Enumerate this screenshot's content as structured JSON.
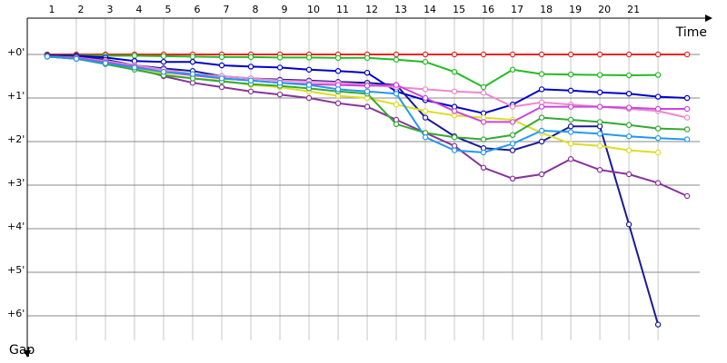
{
  "chart_data": {
    "type": "line",
    "x_label": "Time",
    "y_label": "Gap",
    "x": [
      0,
      1,
      2,
      3,
      4,
      5,
      6,
      7,
      8,
      9,
      10,
      11,
      12,
      13,
      14,
      15,
      16,
      17,
      18,
      19,
      20,
      21,
      22
    ],
    "xlim": [
      -0.6875,
      22.59
    ],
    "xticks": [
      1,
      2,
      3,
      4,
      5,
      6,
      7,
      8,
      9,
      10,
      11,
      12,
      13,
      14,
      15,
      16,
      17,
      18,
      19,
      20,
      21
    ],
    "ylim": [
      -0.833,
      6.77
    ],
    "yticks": [
      {
        "value": 0,
        "label": "+0'"
      },
      {
        "value": 1,
        "label": "+1'"
      },
      {
        "value": 2,
        "label": "+2'"
      },
      {
        "value": 3,
        "label": "+3'"
      },
      {
        "value": 4,
        "label": "+4'"
      },
      {
        "value": 5,
        "label": "+5'"
      },
      {
        "value": 6,
        "label": "+6'"
      }
    ],
    "grid": true,
    "series": [
      {
        "color": "#ee2222",
        "values": [
          0,
          0,
          0,
          0,
          0,
          0,
          0,
          0,
          0,
          0,
          0,
          0,
          0,
          0,
          0,
          0,
          0,
          0,
          0,
          0,
          0,
          0,
          0
        ]
      },
      {
        "color": "#22bb22",
        "values": [
          0.02,
          0.02,
          0.03,
          0.03,
          0.04,
          0.05,
          0.06,
          0.06,
          0.07,
          0.07,
          0.08,
          0.08,
          0.12,
          0.17,
          0.4,
          0.75,
          0.35,
          0.45,
          0.46,
          0.47,
          0.48,
          0.47,
          null
        ]
      },
      {
        "color": "#0000cc",
        "values": [
          0.02,
          0.03,
          0.07,
          0.15,
          0.17,
          0.17,
          0.25,
          0.28,
          0.3,
          0.35,
          0.38,
          0.42,
          0.85,
          1.05,
          1.2,
          1.35,
          1.15,
          0.8,
          0.83,
          0.87,
          0.9,
          0.97,
          1.0
        ]
      },
      {
        "color": "#1a1a99",
        "values": [
          0.02,
          0.05,
          0.12,
          0.25,
          0.32,
          0.38,
          0.5,
          0.55,
          0.58,
          0.6,
          0.63,
          0.65,
          0.7,
          1.45,
          1.88,
          2.15,
          2.2,
          2.0,
          1.65,
          1.65,
          3.9,
          6.2,
          null
        ]
      },
      {
        "color": "#883399",
        "values": [
          0.05,
          0.1,
          0.2,
          0.3,
          0.5,
          0.65,
          0.75,
          0.85,
          0.92,
          1.0,
          1.12,
          1.2,
          1.5,
          1.8,
          2.1,
          2.6,
          2.85,
          2.75,
          2.4,
          2.65,
          2.75,
          2.95,
          3.25
        ]
      },
      {
        "color": "#dddd22",
        "values": [
          0.05,
          0.08,
          0.2,
          0.3,
          0.45,
          0.55,
          0.6,
          0.7,
          0.75,
          0.85,
          0.95,
          1.0,
          1.15,
          1.3,
          1.4,
          1.45,
          1.5,
          1.8,
          2.05,
          2.1,
          2.2,
          2.25,
          null
        ]
      },
      {
        "color": "#ee88cc",
        "values": [
          0.05,
          0.07,
          0.15,
          0.25,
          0.35,
          0.45,
          0.5,
          0.55,
          0.6,
          0.62,
          0.65,
          0.7,
          0.75,
          0.8,
          0.85,
          0.88,
          1.2,
          1.1,
          1.15,
          1.2,
          1.25,
          1.3,
          1.45
        ]
      },
      {
        "color": "#cc44dd",
        "values": [
          0.05,
          0.08,
          0.18,
          0.28,
          0.4,
          0.48,
          0.55,
          0.6,
          0.65,
          0.68,
          0.7,
          0.72,
          0.7,
          1.0,
          1.3,
          1.55,
          1.55,
          1.2,
          1.2,
          1.2,
          1.22,
          1.25,
          1.25
        ]
      },
      {
        "color": "#33aa33",
        "values": [
          0.05,
          0.1,
          0.22,
          0.35,
          0.48,
          0.55,
          0.62,
          0.68,
          0.72,
          0.78,
          0.85,
          0.9,
          1.6,
          1.8,
          1.9,
          1.95,
          1.85,
          1.45,
          1.5,
          1.55,
          1.62,
          1.7,
          1.72
        ]
      },
      {
        "color": "#2299ee",
        "values": [
          0.05,
          0.1,
          0.2,
          0.3,
          0.4,
          0.45,
          0.55,
          0.6,
          0.65,
          0.7,
          0.8,
          0.85,
          0.9,
          1.9,
          2.2,
          2.25,
          2.05,
          1.75,
          1.78,
          1.82,
          1.88,
          1.92,
          1.95
        ]
      }
    ]
  }
}
